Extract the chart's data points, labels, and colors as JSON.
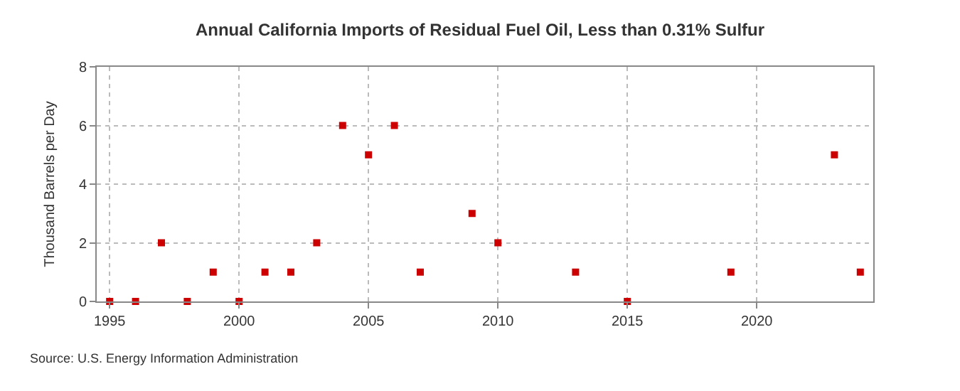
{
  "chart_data": {
    "type": "scatter",
    "title": "Annual California Imports of Residual Fuel Oil, Less than 0.31% Sulfur",
    "ylabel": "Thousand Barrels per Day",
    "x": [
      1995,
      1996,
      1997,
      1998,
      1999,
      2000,
      2001,
      2002,
      2003,
      2004,
      2005,
      2006,
      2007,
      2009,
      2010,
      2013,
      2015,
      2019,
      2023,
      2024
    ],
    "series": [
      {
        "color": "#cc0000",
        "values": [
          0,
          0,
          2,
          0,
          1,
          0,
          1,
          1,
          2,
          6,
          5,
          6,
          1,
          3,
          2,
          1,
          0,
          1,
          5,
          1
        ]
      }
    ],
    "xlim": [
      1994.5,
      2024.5
    ],
    "xticks": [
      1995,
      2000,
      2005,
      2010,
      2015,
      2020
    ],
    "ylim": [
      0,
      8
    ],
    "yticks": [
      0,
      2,
      4,
      6,
      8
    ],
    "grid": true,
    "marker": "square",
    "annotations": [
      "Source: U.S. Energy Information Administration"
    ]
  }
}
